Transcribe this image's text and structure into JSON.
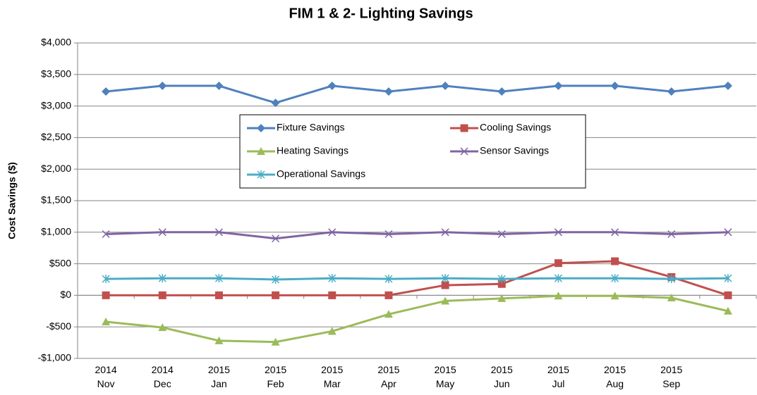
{
  "chart_data": {
    "type": "line",
    "title": "FIM 1 & 2- Lighting Savings",
    "y_label": "Cost Savings ($)",
    "categories": [
      "2014 Nov",
      "2014 Dec",
      "2015 Jan",
      "2015 Feb",
      "2015 Mar",
      "2015 Apr",
      "2015 May",
      "2015 Jun",
      "2015 Jul",
      "2015 Aug",
      "2015 Sep",
      null
    ],
    "series": [
      {
        "name": "Fixture Savings",
        "color": "#4f81bd",
        "marker": "diamond",
        "values": [
          3230,
          3320,
          3320,
          3050,
          3320,
          3230,
          3320,
          3230,
          3320,
          3320,
          3230,
          3320
        ]
      },
      {
        "name": "Cooling Savings",
        "color": "#c0504d",
        "marker": "square",
        "values": [
          0,
          0,
          0,
          0,
          0,
          0,
          160,
          180,
          510,
          540,
          290,
          0
        ]
      },
      {
        "name": "Heating Savings",
        "color": "#9bbb59",
        "marker": "triangle",
        "values": [
          -420,
          -510,
          -720,
          -740,
          -570,
          -300,
          -90,
          -50,
          -10,
          -10,
          -40,
          -250
        ]
      },
      {
        "name": "Sensor Savings",
        "color": "#8064a2",
        "marker": "x",
        "values": [
          970,
          1000,
          1000,
          900,
          1000,
          970,
          1000,
          970,
          1000,
          1000,
          970,
          1000
        ]
      },
      {
        "name": "Operational Savings",
        "color": "#4bacc6",
        "marker": "star",
        "values": [
          260,
          270,
          270,
          250,
          270,
          260,
          270,
          260,
          270,
          270,
          260,
          270
        ]
      }
    ],
    "ylim": [
      -1000,
      4000
    ],
    "yticks": [
      {
        "value": -1000,
        "label": "-$1,000"
      },
      {
        "value": -500,
        "label": "-$500"
      },
      {
        "value": 0,
        "label": "$0"
      },
      {
        "value": 500,
        "label": "$500"
      },
      {
        "value": 1000,
        "label": "$1,000"
      },
      {
        "value": 1500,
        "label": "$1,500"
      },
      {
        "value": 2000,
        "label": "$2,000"
      },
      {
        "value": 2500,
        "label": "$2,500"
      },
      {
        "value": 3000,
        "label": "$3,000"
      },
      {
        "value": 3500,
        "label": "$3,500"
      },
      {
        "value": 4000,
        "label": "$4,000"
      }
    ],
    "grid": true
  }
}
